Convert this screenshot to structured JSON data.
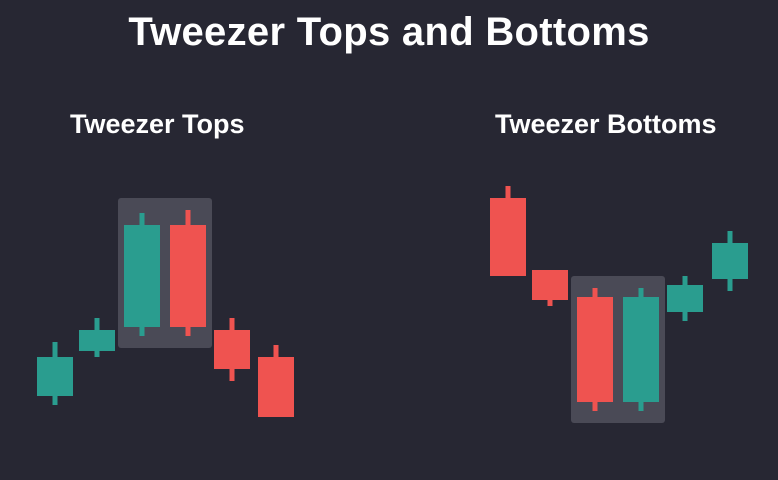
{
  "title": "Tweezer Tops and Bottoms",
  "colors": {
    "background": "#272733",
    "bullish": "#2a9d8f",
    "bearish": "#ef5350",
    "highlight": "#4a4a56",
    "text": "#ffffff"
  },
  "chart_data": [
    {
      "type": "candlestick",
      "title": "Tweezer Tops",
      "highlight_range": [
        3,
        4
      ],
      "candles": [
        {
          "direction": "up",
          "open": 18,
          "close": 31,
          "high": 36,
          "low": 15
        },
        {
          "direction": "up",
          "open": 33,
          "close": 40,
          "high": 44,
          "low": 31
        },
        {
          "direction": "up",
          "open": 41,
          "close": 75,
          "high": 79,
          "low": 38
        },
        {
          "direction": "down",
          "open": 75,
          "close": 41,
          "high": 80,
          "low": 38
        },
        {
          "direction": "down",
          "open": 40,
          "close": 27,
          "high": 44,
          "low": 23
        },
        {
          "direction": "down",
          "open": 31,
          "close": 11,
          "high": 35,
          "low": 11
        }
      ]
    },
    {
      "type": "candlestick",
      "title": "Tweezer Bottoms",
      "highlight_range": [
        3,
        4
      ],
      "candles": [
        {
          "direction": "down",
          "open": 84,
          "close": 58,
          "high": 88,
          "low": 58
        },
        {
          "direction": "down",
          "open": 60,
          "close": 50,
          "high": 60,
          "low": 48
        },
        {
          "direction": "down",
          "open": 51,
          "close": 16,
          "high": 54,
          "low": 13
        },
        {
          "direction": "up",
          "open": 16,
          "close": 51,
          "high": 54,
          "low": 13
        },
        {
          "direction": "up",
          "open": 46,
          "close": 55,
          "high": 58,
          "low": 43
        },
        {
          "direction": "up",
          "open": 57,
          "close": 69,
          "high": 73,
          "low": 53
        }
      ]
    }
  ]
}
